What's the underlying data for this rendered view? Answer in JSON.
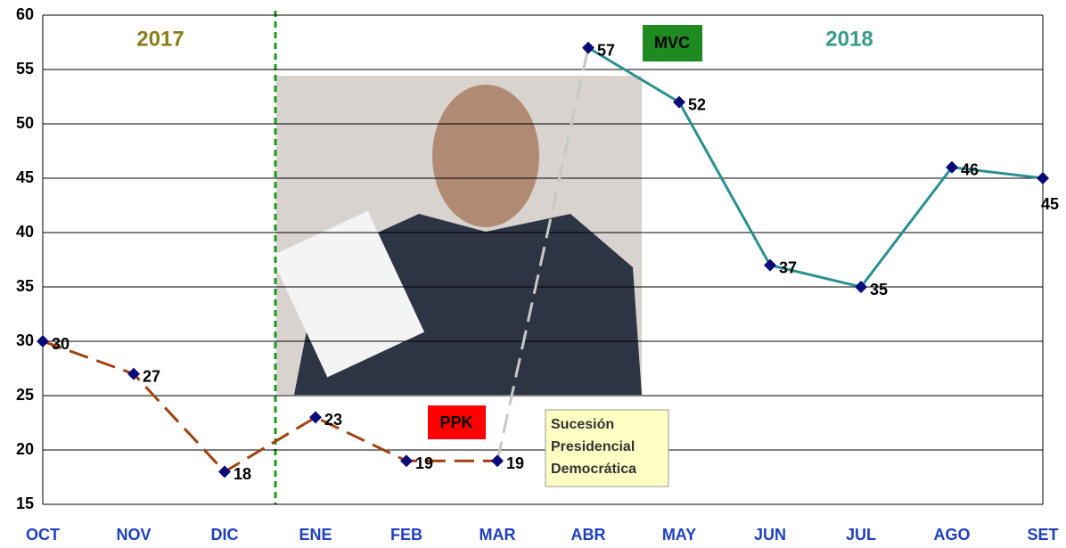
{
  "chart_data": {
    "type": "line",
    "categories": [
      "OCT",
      "NOV",
      "DIC",
      "ENE",
      "FEB",
      "MAR",
      "ABR",
      "MAY",
      "JUN",
      "JUL",
      "AGO",
      "SET"
    ],
    "series": [
      {
        "name": "PPK",
        "color": "#a0420e",
        "values": [
          30,
          27,
          18,
          23,
          19,
          19,
          null,
          null,
          null,
          null,
          null,
          null
        ]
      },
      {
        "name": "MVC",
        "color": "#2a9090",
        "values": [
          null,
          null,
          null,
          null,
          null,
          null,
          57,
          52,
          37,
          35,
          46,
          45
        ]
      }
    ],
    "ylim": [
      15,
      60
    ],
    "yticks": [
      15,
      20,
      25,
      30,
      35,
      40,
      45,
      50,
      55,
      60
    ],
    "grid": true,
    "annotations": [
      "2017",
      "2018"
    ],
    "note": [
      "Sucesión",
      "Presidencial",
      "Democrática"
    ]
  }
}
